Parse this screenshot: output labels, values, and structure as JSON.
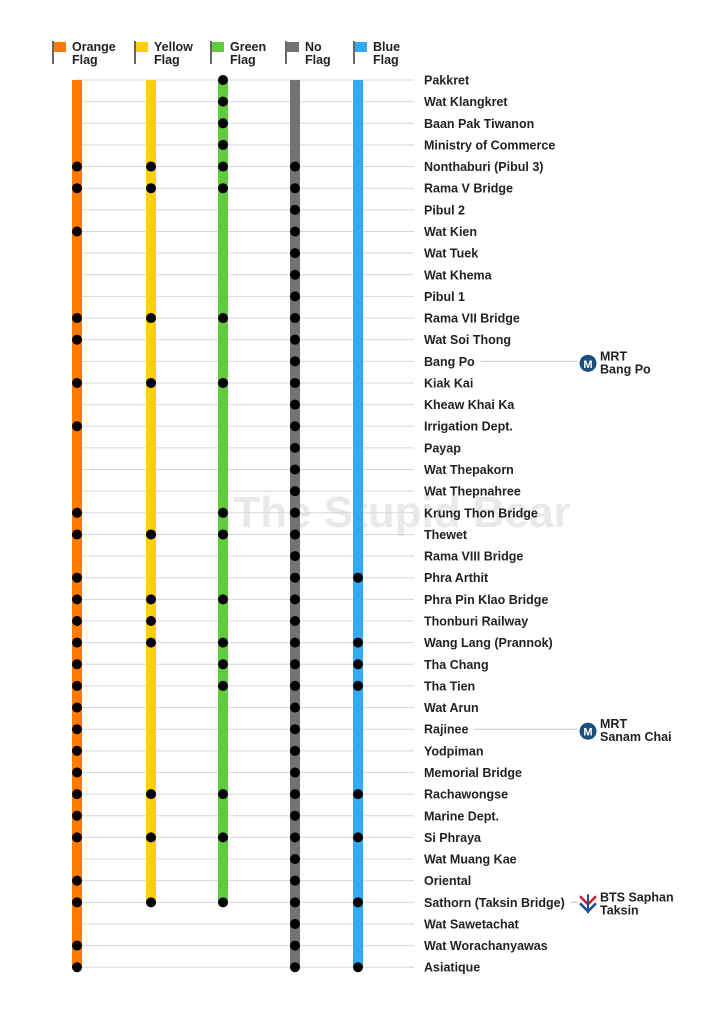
{
  "watermark": "The Stupid Bear",
  "lines": [
    {
      "key": "orange",
      "label1": "Orange",
      "label2": "Flag",
      "color": "#ff7a00"
    },
    {
      "key": "yellow",
      "label1": "Yellow",
      "label2": "Flag",
      "color": "#ffd000"
    },
    {
      "key": "green",
      "label1": "Green",
      "label2": "Flag",
      "color": "#5fcc3c"
    },
    {
      "key": "noflag",
      "label1": "No",
      "label2": "Flag",
      "color": "#737373"
    },
    {
      "key": "blue",
      "label1": "Blue",
      "label2": "Flag",
      "color": "#33aaf2"
    }
  ],
  "stops": [
    {
      "name": "Pakkret",
      "lines": [
        "green"
      ]
    },
    {
      "name": "Wat Klangkret",
      "lines": [
        "green"
      ]
    },
    {
      "name": "Baan Pak Tiwanon",
      "lines": [
        "green"
      ]
    },
    {
      "name": "Ministry of Commerce",
      "lines": [
        "green"
      ]
    },
    {
      "name": "Nonthaburi (Pibul 3)",
      "lines": [
        "orange",
        "yellow",
        "green",
        "noflag"
      ]
    },
    {
      "name": "Rama V Bridge",
      "lines": [
        "orange",
        "yellow",
        "green",
        "noflag"
      ]
    },
    {
      "name": "Pibul 2",
      "lines": [
        "noflag"
      ]
    },
    {
      "name": "Wat Kien",
      "lines": [
        "orange",
        "noflag"
      ]
    },
    {
      "name": "Wat Tuek",
      "lines": [
        "noflag"
      ]
    },
    {
      "name": "Wat Khema",
      "lines": [
        "noflag"
      ]
    },
    {
      "name": "Pibul 1",
      "lines": [
        "noflag"
      ]
    },
    {
      "name": "Rama VII Bridge",
      "lines": [
        "orange",
        "yellow",
        "green",
        "noflag"
      ]
    },
    {
      "name": "Wat Soi Thong",
      "lines": [
        "orange",
        "noflag"
      ]
    },
    {
      "name": "Bang Po",
      "lines": [
        "noflag"
      ],
      "connection": {
        "type": "MRT",
        "line1": "MRT",
        "line2": "Bang Po"
      }
    },
    {
      "name": "Kiak Kai",
      "lines": [
        "orange",
        "yellow",
        "green",
        "noflag"
      ]
    },
    {
      "name": "Kheaw Khai Ka",
      "lines": [
        "noflag"
      ]
    },
    {
      "name": "Irrigation Dept.",
      "lines": [
        "orange",
        "noflag"
      ]
    },
    {
      "name": "Payap",
      "lines": [
        "noflag"
      ]
    },
    {
      "name": "Wat Thepakorn",
      "lines": [
        "noflag"
      ]
    },
    {
      "name": "Wat Thepnahree",
      "lines": [
        "noflag"
      ]
    },
    {
      "name": "Krung Thon Bridge",
      "lines": [
        "orange",
        "green",
        "noflag"
      ]
    },
    {
      "name": "Thewet",
      "lines": [
        "orange",
        "yellow",
        "green",
        "noflag"
      ]
    },
    {
      "name": "Rama VIII Bridge",
      "lines": [
        "noflag"
      ]
    },
    {
      "name": "Phra Arthit",
      "lines": [
        "orange",
        "noflag",
        "blue"
      ]
    },
    {
      "name": "Phra Pin Klao Bridge",
      "lines": [
        "orange",
        "yellow",
        "green",
        "noflag"
      ]
    },
    {
      "name": "Thonburi Railway",
      "lines": [
        "orange",
        "yellow",
        "noflag"
      ]
    },
    {
      "name": "Wang Lang (Prannok)",
      "lines": [
        "orange",
        "yellow",
        "green",
        "noflag",
        "blue"
      ]
    },
    {
      "name": "Tha Chang",
      "lines": [
        "orange",
        "green",
        "noflag",
        "blue"
      ]
    },
    {
      "name": "Tha Tien",
      "lines": [
        "orange",
        "green",
        "noflag",
        "blue"
      ]
    },
    {
      "name": "Wat Arun",
      "lines": [
        "orange",
        "noflag"
      ]
    },
    {
      "name": "Rajinee",
      "lines": [
        "orange",
        "noflag"
      ],
      "connection": {
        "type": "MRT",
        "line1": "MRT",
        "line2": "Sanam Chai"
      }
    },
    {
      "name": "Yodpiman",
      "lines": [
        "orange",
        "noflag"
      ]
    },
    {
      "name": "Memorial Bridge",
      "lines": [
        "orange",
        "noflag"
      ]
    },
    {
      "name": "Rachawongse",
      "lines": [
        "orange",
        "yellow",
        "green",
        "noflag",
        "blue"
      ]
    },
    {
      "name": "Marine Dept.",
      "lines": [
        "orange",
        "noflag"
      ]
    },
    {
      "name": "Si Phraya",
      "lines": [
        "orange",
        "yellow",
        "green",
        "noflag",
        "blue"
      ]
    },
    {
      "name": "Wat Muang Kae",
      "lines": [
        "noflag"
      ]
    },
    {
      "name": "Oriental",
      "lines": [
        "orange",
        "noflag"
      ]
    },
    {
      "name": "Sathorn (Taksin Bridge)",
      "lines": [
        "orange",
        "yellow",
        "green",
        "noflag",
        "blue"
      ],
      "connection": {
        "type": "BTS",
        "line1": "BTS Saphan",
        "line2": "Taksin"
      }
    },
    {
      "name": "Wat Sawetachat",
      "lines": [
        "noflag"
      ]
    },
    {
      "name": "Wat Worachanyawas",
      "lines": [
        "orange",
        "noflag"
      ]
    },
    {
      "name": "Asiatique",
      "lines": [
        "orange",
        "noflag",
        "blue"
      ]
    }
  ],
  "icons": {
    "mrt": "mrt-logo-icon",
    "bts": "bts-logo-icon",
    "flag": "flag-icon"
  }
}
